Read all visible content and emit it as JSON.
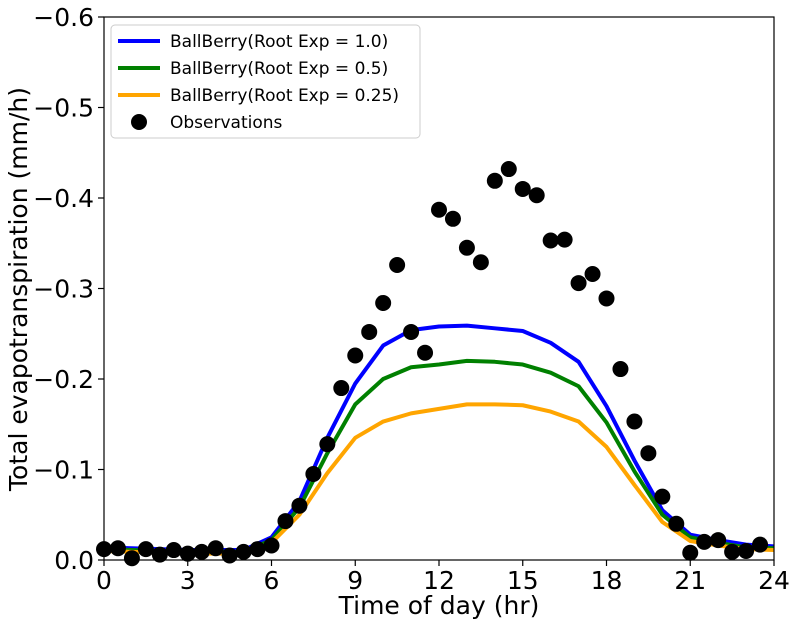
{
  "chart_data": {
    "type": "line",
    "title": "",
    "xlabel": "Time of day (hr)",
    "ylabel": "Total evapotranspiration (mm/h)",
    "xlim": [
      0,
      24
    ],
    "ylim": [
      0.0,
      -0.6
    ],
    "y_axis_inverted": true,
    "grid": false,
    "legend_position": "top-left",
    "x_ticks": [
      {
        "value": 0,
        "label": "0"
      },
      {
        "value": 3,
        "label": "3"
      },
      {
        "value": 6,
        "label": "6"
      },
      {
        "value": 9,
        "label": "9"
      },
      {
        "value": 12,
        "label": "12"
      },
      {
        "value": 15,
        "label": "15"
      },
      {
        "value": 18,
        "label": "18"
      },
      {
        "value": 21,
        "label": "21"
      },
      {
        "value": 24,
        "label": "24"
      }
    ],
    "y_ticks": [
      {
        "value": 0.0,
        "label": "0.0"
      },
      {
        "value": -0.1,
        "label": "−0.1"
      },
      {
        "value": -0.2,
        "label": "−0.2"
      },
      {
        "value": -0.3,
        "label": "−0.3"
      },
      {
        "value": -0.4,
        "label": "−0.4"
      },
      {
        "value": -0.5,
        "label": "−0.5"
      },
      {
        "value": -0.6,
        "label": "−0.6"
      }
    ],
    "x": [
      0,
      1,
      2,
      3,
      4,
      5,
      6,
      7,
      8,
      9,
      10,
      11,
      12,
      13,
      14,
      15,
      16,
      17,
      18,
      19,
      20,
      21,
      22,
      23,
      24
    ],
    "series": [
      {
        "name": "BallBerry(Root Exp = 1.0)",
        "color": "#0000ff",
        "values": [
          -0.014,
          -0.013,
          -0.012,
          -0.011,
          -0.011,
          -0.011,
          -0.025,
          -0.065,
          -0.135,
          -0.195,
          -0.237,
          -0.254,
          -0.258,
          -0.259,
          -0.256,
          -0.253,
          -0.24,
          -0.219,
          -0.17,
          -0.11,
          -0.055,
          -0.028,
          -0.022,
          -0.017,
          -0.015
        ]
      },
      {
        "name": "BallBerry(Root Exp = 0.5)",
        "color": "#008000",
        "values": [
          -0.012,
          -0.011,
          -0.01,
          -0.009,
          -0.009,
          -0.009,
          -0.022,
          -0.058,
          -0.118,
          -0.172,
          -0.2,
          -0.213,
          -0.216,
          -0.22,
          -0.219,
          -0.216,
          -0.207,
          -0.192,
          -0.152,
          -0.098,
          -0.05,
          -0.025,
          -0.019,
          -0.014,
          -0.013
        ]
      },
      {
        "name": "BallBerry(Root Exp = 0.25)",
        "color": "#ffa500",
        "values": [
          -0.01,
          -0.009,
          -0.008,
          -0.007,
          -0.007,
          -0.007,
          -0.019,
          -0.05,
          -0.096,
          -0.135,
          -0.153,
          -0.162,
          -0.167,
          -0.172,
          -0.172,
          -0.171,
          -0.164,
          -0.153,
          -0.125,
          -0.083,
          -0.042,
          -0.021,
          -0.016,
          -0.012,
          -0.011
        ]
      }
    ],
    "scatter": {
      "name": "Observations",
      "color": "#000000",
      "points": [
        [
          0.0,
          -0.012
        ],
        [
          0.5,
          -0.013
        ],
        [
          1.0,
          -0.002
        ],
        [
          1.5,
          -0.012
        ],
        [
          2.0,
          -0.006
        ],
        [
          2.5,
          -0.011
        ],
        [
          3.0,
          -0.007
        ],
        [
          3.5,
          -0.009
        ],
        [
          4.0,
          -0.013
        ],
        [
          4.5,
          -0.005
        ],
        [
          5.0,
          -0.009
        ],
        [
          5.5,
          -0.012
        ],
        [
          6.0,
          -0.016
        ],
        [
          6.5,
          -0.043
        ],
        [
          7.0,
          -0.06
        ],
        [
          7.5,
          -0.095
        ],
        [
          8.0,
          -0.128
        ],
        [
          8.5,
          -0.19
        ],
        [
          9.0,
          -0.226
        ],
        [
          9.5,
          -0.252
        ],
        [
          10.0,
          -0.284
        ],
        [
          10.5,
          -0.326
        ],
        [
          11.0,
          -0.252
        ],
        [
          11.5,
          -0.229
        ],
        [
          12.0,
          -0.387
        ],
        [
          12.5,
          -0.377
        ],
        [
          13.0,
          -0.345
        ],
        [
          13.5,
          -0.329
        ],
        [
          14.0,
          -0.419
        ],
        [
          14.5,
          -0.432
        ],
        [
          15.0,
          -0.41
        ],
        [
          15.5,
          -0.403
        ],
        [
          16.0,
          -0.353
        ],
        [
          16.5,
          -0.354
        ],
        [
          17.0,
          -0.306
        ],
        [
          17.5,
          -0.316
        ],
        [
          18.0,
          -0.289
        ],
        [
          18.5,
          -0.211
        ],
        [
          19.0,
          -0.153
        ],
        [
          19.5,
          -0.118
        ],
        [
          20.0,
          -0.07
        ],
        [
          20.5,
          -0.04
        ],
        [
          21.0,
          -0.008
        ],
        [
          21.5,
          -0.02
        ],
        [
          22.0,
          -0.022
        ],
        [
          22.5,
          -0.009
        ],
        [
          23.0,
          -0.01
        ],
        [
          23.5,
          -0.017
        ]
      ]
    }
  }
}
